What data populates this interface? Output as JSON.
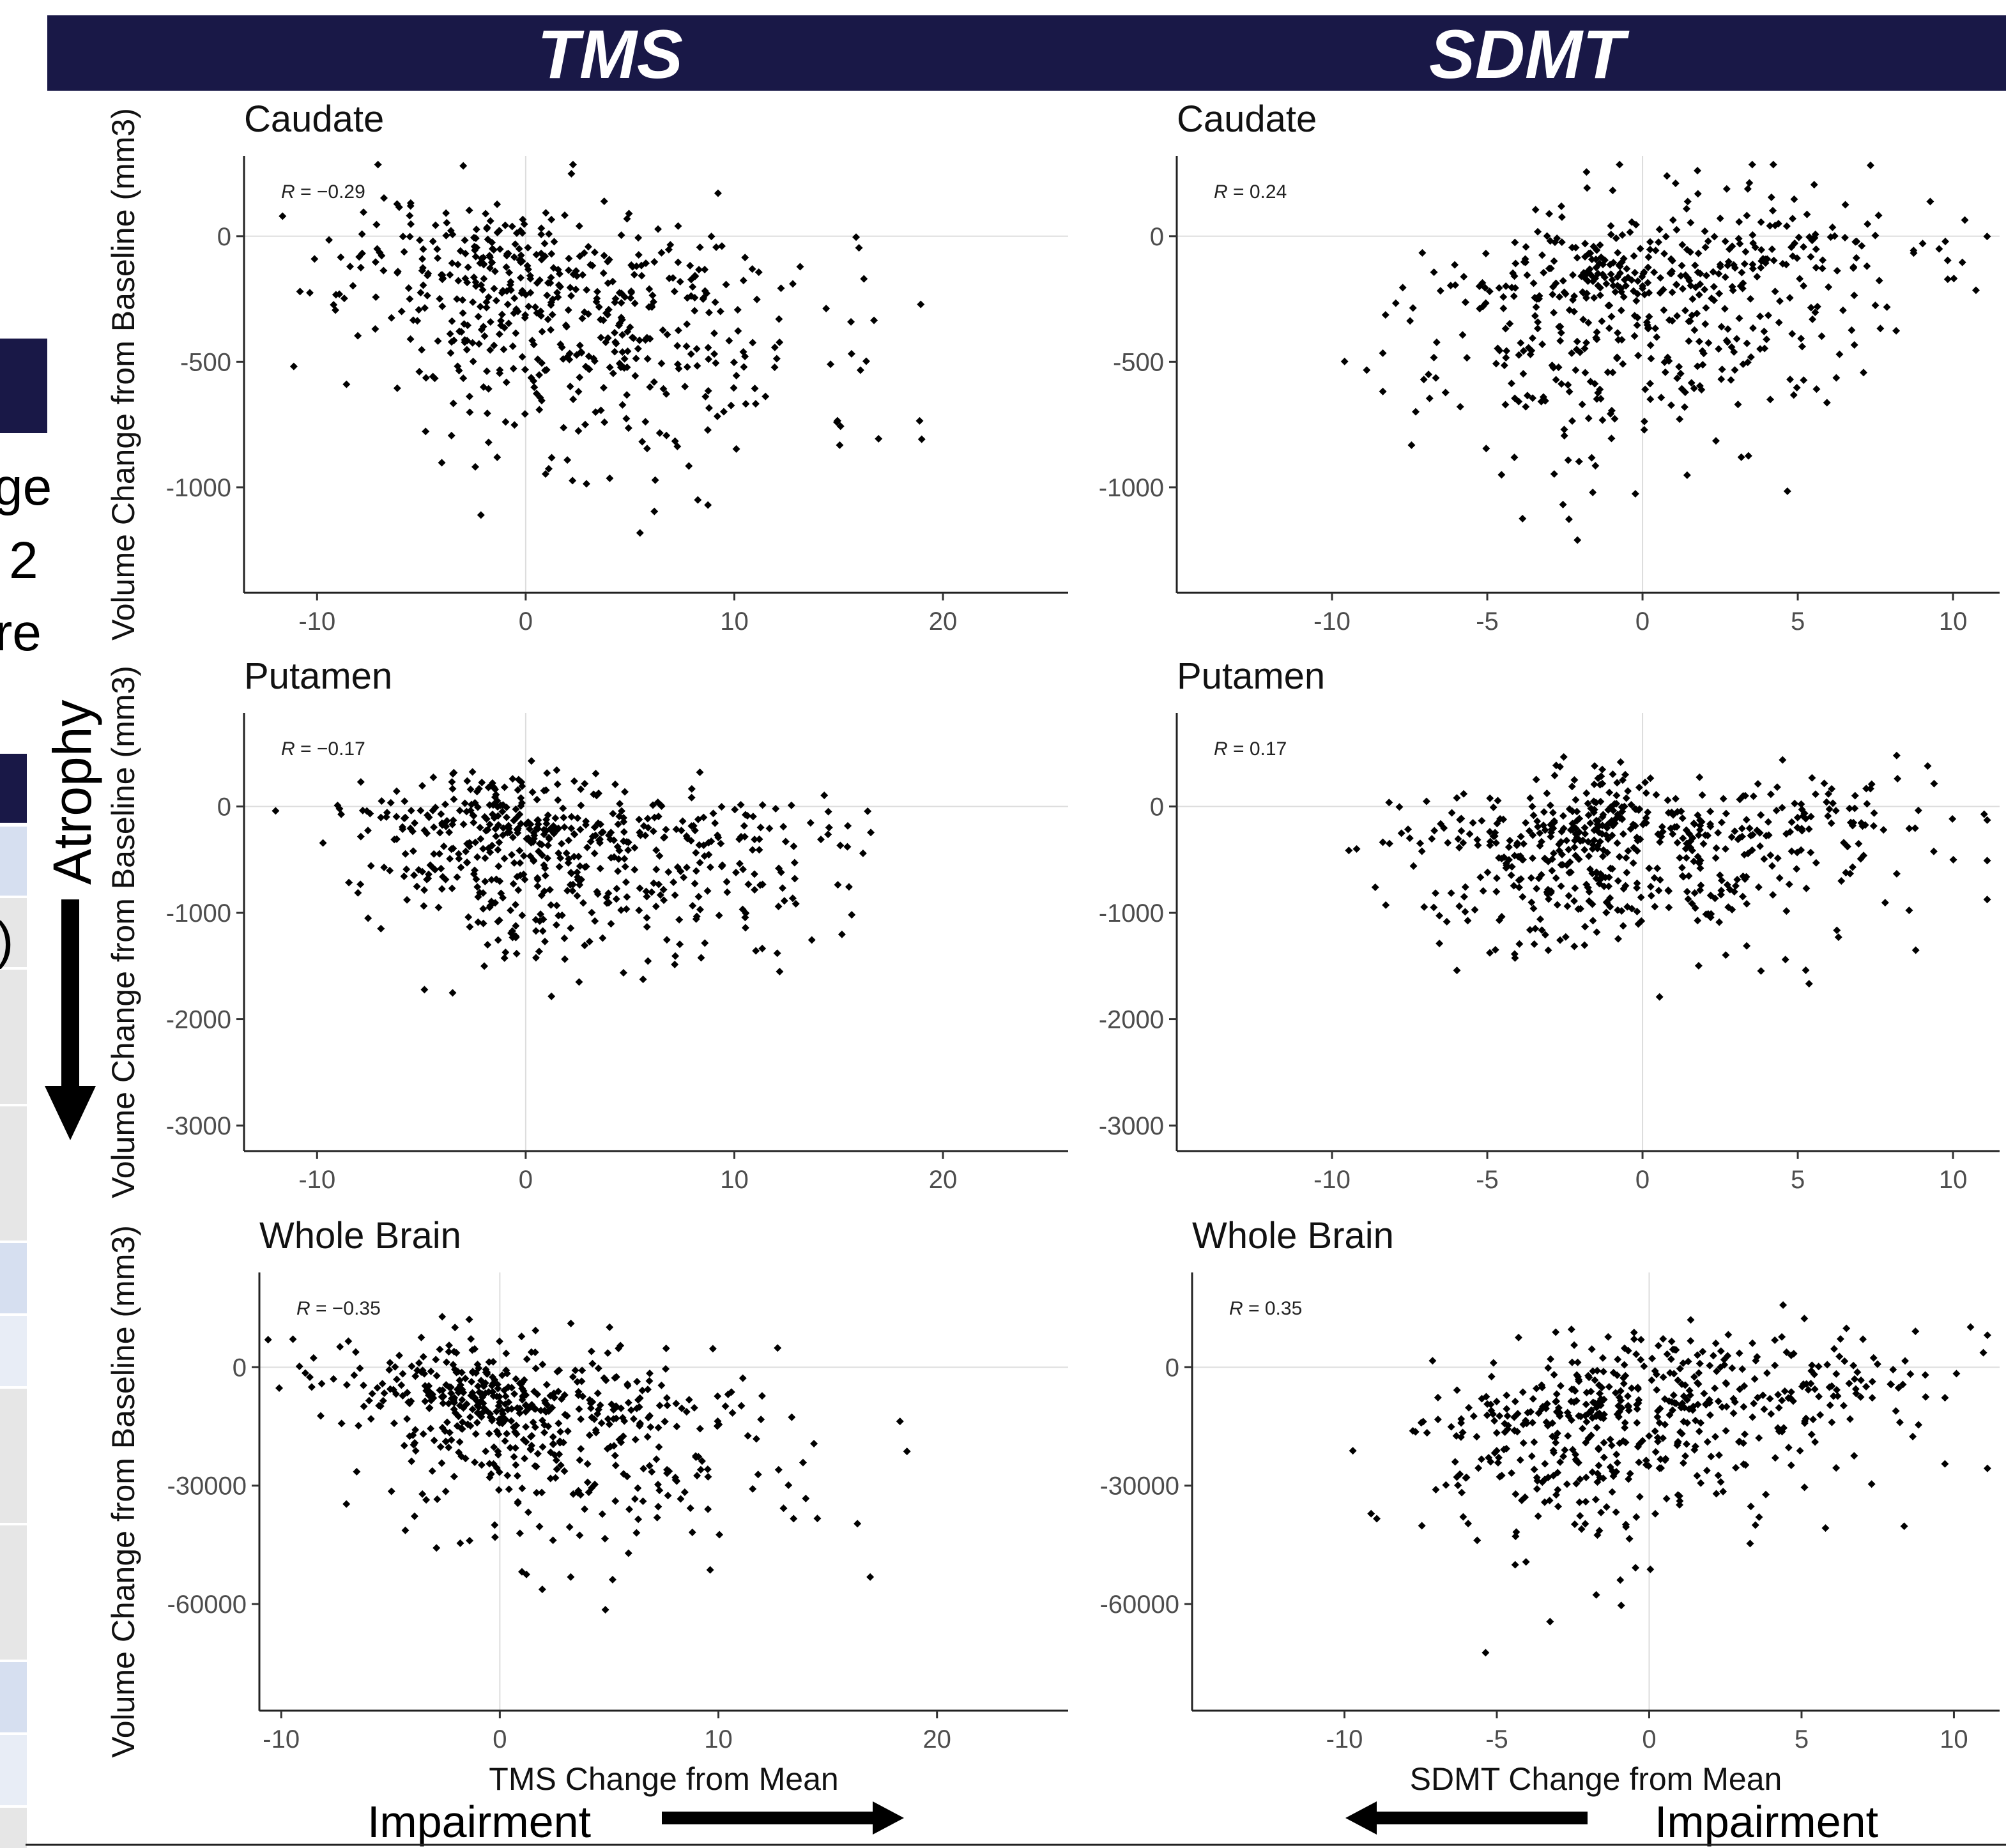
{
  "header": {
    "left_title": "TMS",
    "right_title": "SDMT",
    "color": "#191847"
  },
  "side": {
    "cut_text_1": "ge",
    "cut_text_2": "2",
    "cut_text_3": "re",
    "cut_text_4": ")",
    "atrophy_label": "Atrophy",
    "block_color": "#191847",
    "row_colors": [
      "#d6dff0",
      "#e6e6e6"
    ]
  },
  "bottom": {
    "left_impairment": "Impairment",
    "right_impairment": "Impairment"
  },
  "chart_data": [
    {
      "type": "scatter",
      "title": "Caudate",
      "xlabel": "",
      "ylabel": "Volume Change from Baseline (mm3)",
      "xlim": [
        -13.5,
        26
      ],
      "ylim": [
        -1420,
        320
      ],
      "xticks": [
        -10,
        0,
        10,
        20
      ],
      "yticks": [
        0,
        -500,
        -1000
      ],
      "annotation": {
        "prefix": "R",
        "text": " = −0.29"
      },
      "seed": 11,
      "n": 560,
      "center": [
        0.8,
        -240
      ],
      "spread": [
        5.2,
        240
      ],
      "corr": -0.29
    },
    {
      "type": "scatter",
      "title": "Caudate",
      "xlabel": "",
      "ylabel": "",
      "xlim": [
        -15,
        11.5
      ],
      "ylim": [
        -1420,
        320
      ],
      "xticks": [
        -10,
        -5,
        0,
        5,
        10
      ],
      "yticks": [
        0,
        -500,
        -1000
      ],
      "annotation": {
        "prefix": "R",
        "text": " = 0.24"
      },
      "seed": 23,
      "n": 560,
      "center": [
        -0.6,
        -240
      ],
      "spread": [
        3.6,
        240
      ],
      "corr": 0.24
    },
    {
      "type": "scatter",
      "title": "Putamen",
      "xlabel": "",
      "ylabel": "Volume Change from Baseline (mm3)",
      "xlim": [
        -13.5,
        26
      ],
      "ylim": [
        -3240,
        880
      ],
      "xticks": [
        -10,
        0,
        10,
        20
      ],
      "yticks": [
        0,
        -1000,
        -2000,
        -3000
      ],
      "annotation": {
        "prefix": "R",
        "text": " = −0.17"
      },
      "seed": 37,
      "n": 580,
      "center": [
        1.2,
        -330
      ],
      "spread": [
        5.0,
        390
      ],
      "corr": -0.17
    },
    {
      "type": "scatter",
      "title": "Putamen",
      "xlabel": "",
      "ylabel": "",
      "xlim": [
        -15,
        11.5
      ],
      "ylim": [
        -3240,
        880
      ],
      "xticks": [
        -10,
        -5,
        0,
        5,
        10
      ],
      "yticks": [
        0,
        -1000,
        -2000,
        -3000
      ],
      "annotation": {
        "prefix": "R",
        "text": " = 0.17"
      },
      "seed": 41,
      "n": 580,
      "center": [
        -0.8,
        -330
      ],
      "spread": [
        3.8,
        390
      ],
      "corr": 0.17
    },
    {
      "type": "scatter",
      "title": "Whole Brain",
      "xlabel": "TMS Change from Mean",
      "ylabel": "Volume Change from Baseline (mm3)",
      "xlim": [
        -11,
        26
      ],
      "ylim": [
        -87000,
        24000
      ],
      "xticks": [
        -10,
        0,
        10,
        20
      ],
      "yticks": [
        0,
        -30000,
        -60000
      ],
      "annotation": {
        "prefix": "R",
        "text": " = −0.35"
      },
      "seed": 53,
      "n": 560,
      "center": [
        1.2,
        -12500
      ],
      "spread": [
        5.0,
        12000
      ],
      "corr": -0.35
    },
    {
      "type": "scatter",
      "title": "Whole Brain",
      "xlabel": "SDMT Change from Mean",
      "ylabel": "",
      "xlim": [
        -15,
        11.5
      ],
      "ylim": [
        -87000,
        24000
      ],
      "xticks": [
        -10,
        -5,
        0,
        5,
        10
      ],
      "yticks": [
        0,
        -30000,
        -60000
      ],
      "annotation": {
        "prefix": "R",
        "text": " = 0.35"
      },
      "seed": 67,
      "n": 560,
      "center": [
        -0.8,
        -12500
      ],
      "spread": [
        3.6,
        12000
      ],
      "corr": 0.35
    }
  ]
}
